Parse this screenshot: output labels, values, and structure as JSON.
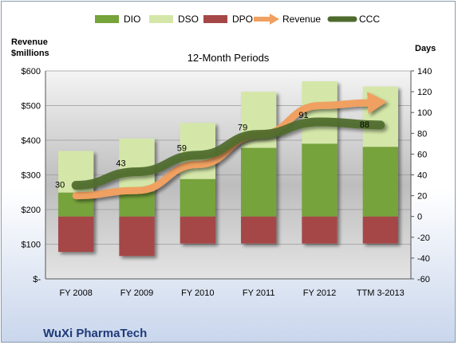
{
  "chart_data": {
    "type": "bar",
    "subtitle": "12-Month Periods",
    "company": "WuXi PharmaTech",
    "y_left_label_line1": "Revenue",
    "y_left_label_line2": "$millions",
    "y_right_label": "Days",
    "categories": [
      "FY 2008",
      "FY 2009",
      "FY 2010",
      "FY 2011",
      "FY 2012",
      "TTM 3-2013"
    ],
    "y_left_ticks": [
      "$-",
      "$100",
      "$200",
      "$300",
      "$400",
      "$500",
      "$600"
    ],
    "y_left_range": [
      0,
      600
    ],
    "y_right_range": [
      -60,
      140
    ],
    "y_right_ticks": [
      "-60",
      "-40",
      "-20",
      "0",
      "20",
      "40",
      "60",
      "80",
      "100",
      "120",
      "140"
    ],
    "legend_position": "top",
    "series": [
      {
        "name": "DIO",
        "axis": "right",
        "color": "#76a33a",
        "values": [
          23,
          24,
          36,
          66,
          70,
          67
        ]
      },
      {
        "name": "DSO",
        "axis": "right",
        "color": "#d4e7a9",
        "values": [
          40,
          51,
          54,
          54,
          60,
          58
        ]
      },
      {
        "name": "DPO",
        "axis": "right",
        "color": "#a64747",
        "values": [
          -34,
          -38,
          -26,
          -26,
          -26,
          -26
        ]
      },
      {
        "name": "Revenue",
        "axis": "left",
        "color": "#f0a060",
        "values": [
          240,
          255,
          330,
          415,
          500,
          510
        ]
      },
      {
        "name": "CCC",
        "axis": "right",
        "color": "#4e6b2e",
        "values": [
          30,
          43,
          59,
          79,
          91,
          88
        ]
      }
    ],
    "data_labels": [
      "30",
      "43",
      "59",
      "79",
      "91",
      "88"
    ]
  }
}
